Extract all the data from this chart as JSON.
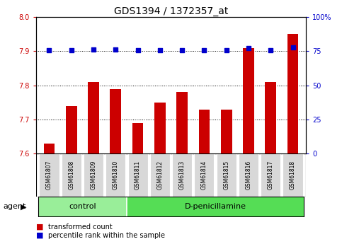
{
  "title": "GDS1394 / 1372357_at",
  "samples": [
    "GSM61807",
    "GSM61808",
    "GSM61809",
    "GSM61810",
    "GSM61811",
    "GSM61812",
    "GSM61813",
    "GSM61814",
    "GSM61815",
    "GSM61816",
    "GSM61817",
    "GSM61818"
  ],
  "bar_values": [
    7.63,
    7.74,
    7.81,
    7.79,
    7.69,
    7.75,
    7.78,
    7.73,
    7.73,
    7.91,
    7.81,
    7.95
  ],
  "percentile_values": [
    75.5,
    76.0,
    76.5,
    76.5,
    75.5,
    76.0,
    76.0,
    76.0,
    75.5,
    77.5,
    76.0,
    78.0
  ],
  "bar_color": "#cc0000",
  "percentile_color": "#0000cc",
  "ylim_left": [
    7.6,
    8.0
  ],
  "ylim_right": [
    0,
    100
  ],
  "yticks_left": [
    7.6,
    7.7,
    7.8,
    7.9,
    8.0
  ],
  "yticks_right": [
    0,
    25,
    50,
    75,
    100
  ],
  "ytick_labels_right": [
    "0",
    "25",
    "50",
    "75",
    "100%"
  ],
  "control_count": 4,
  "group_labels": [
    "control",
    "D-penicillamine"
  ],
  "group_color_control": "#99ee99",
  "group_color_dpen": "#55dd55",
  "agent_label": "agent",
  "legend_bar_label": "transformed count",
  "legend_dot_label": "percentile rank within the sample",
  "bar_width": 0.5,
  "plot_bg": "#ffffff",
  "sample_box_color": "#d8d8d8",
  "title_fontsize": 10,
  "tick_fontsize": 7,
  "sample_fontsize": 5.5,
  "group_fontsize": 8,
  "legend_fontsize": 7,
  "agent_fontsize": 8
}
